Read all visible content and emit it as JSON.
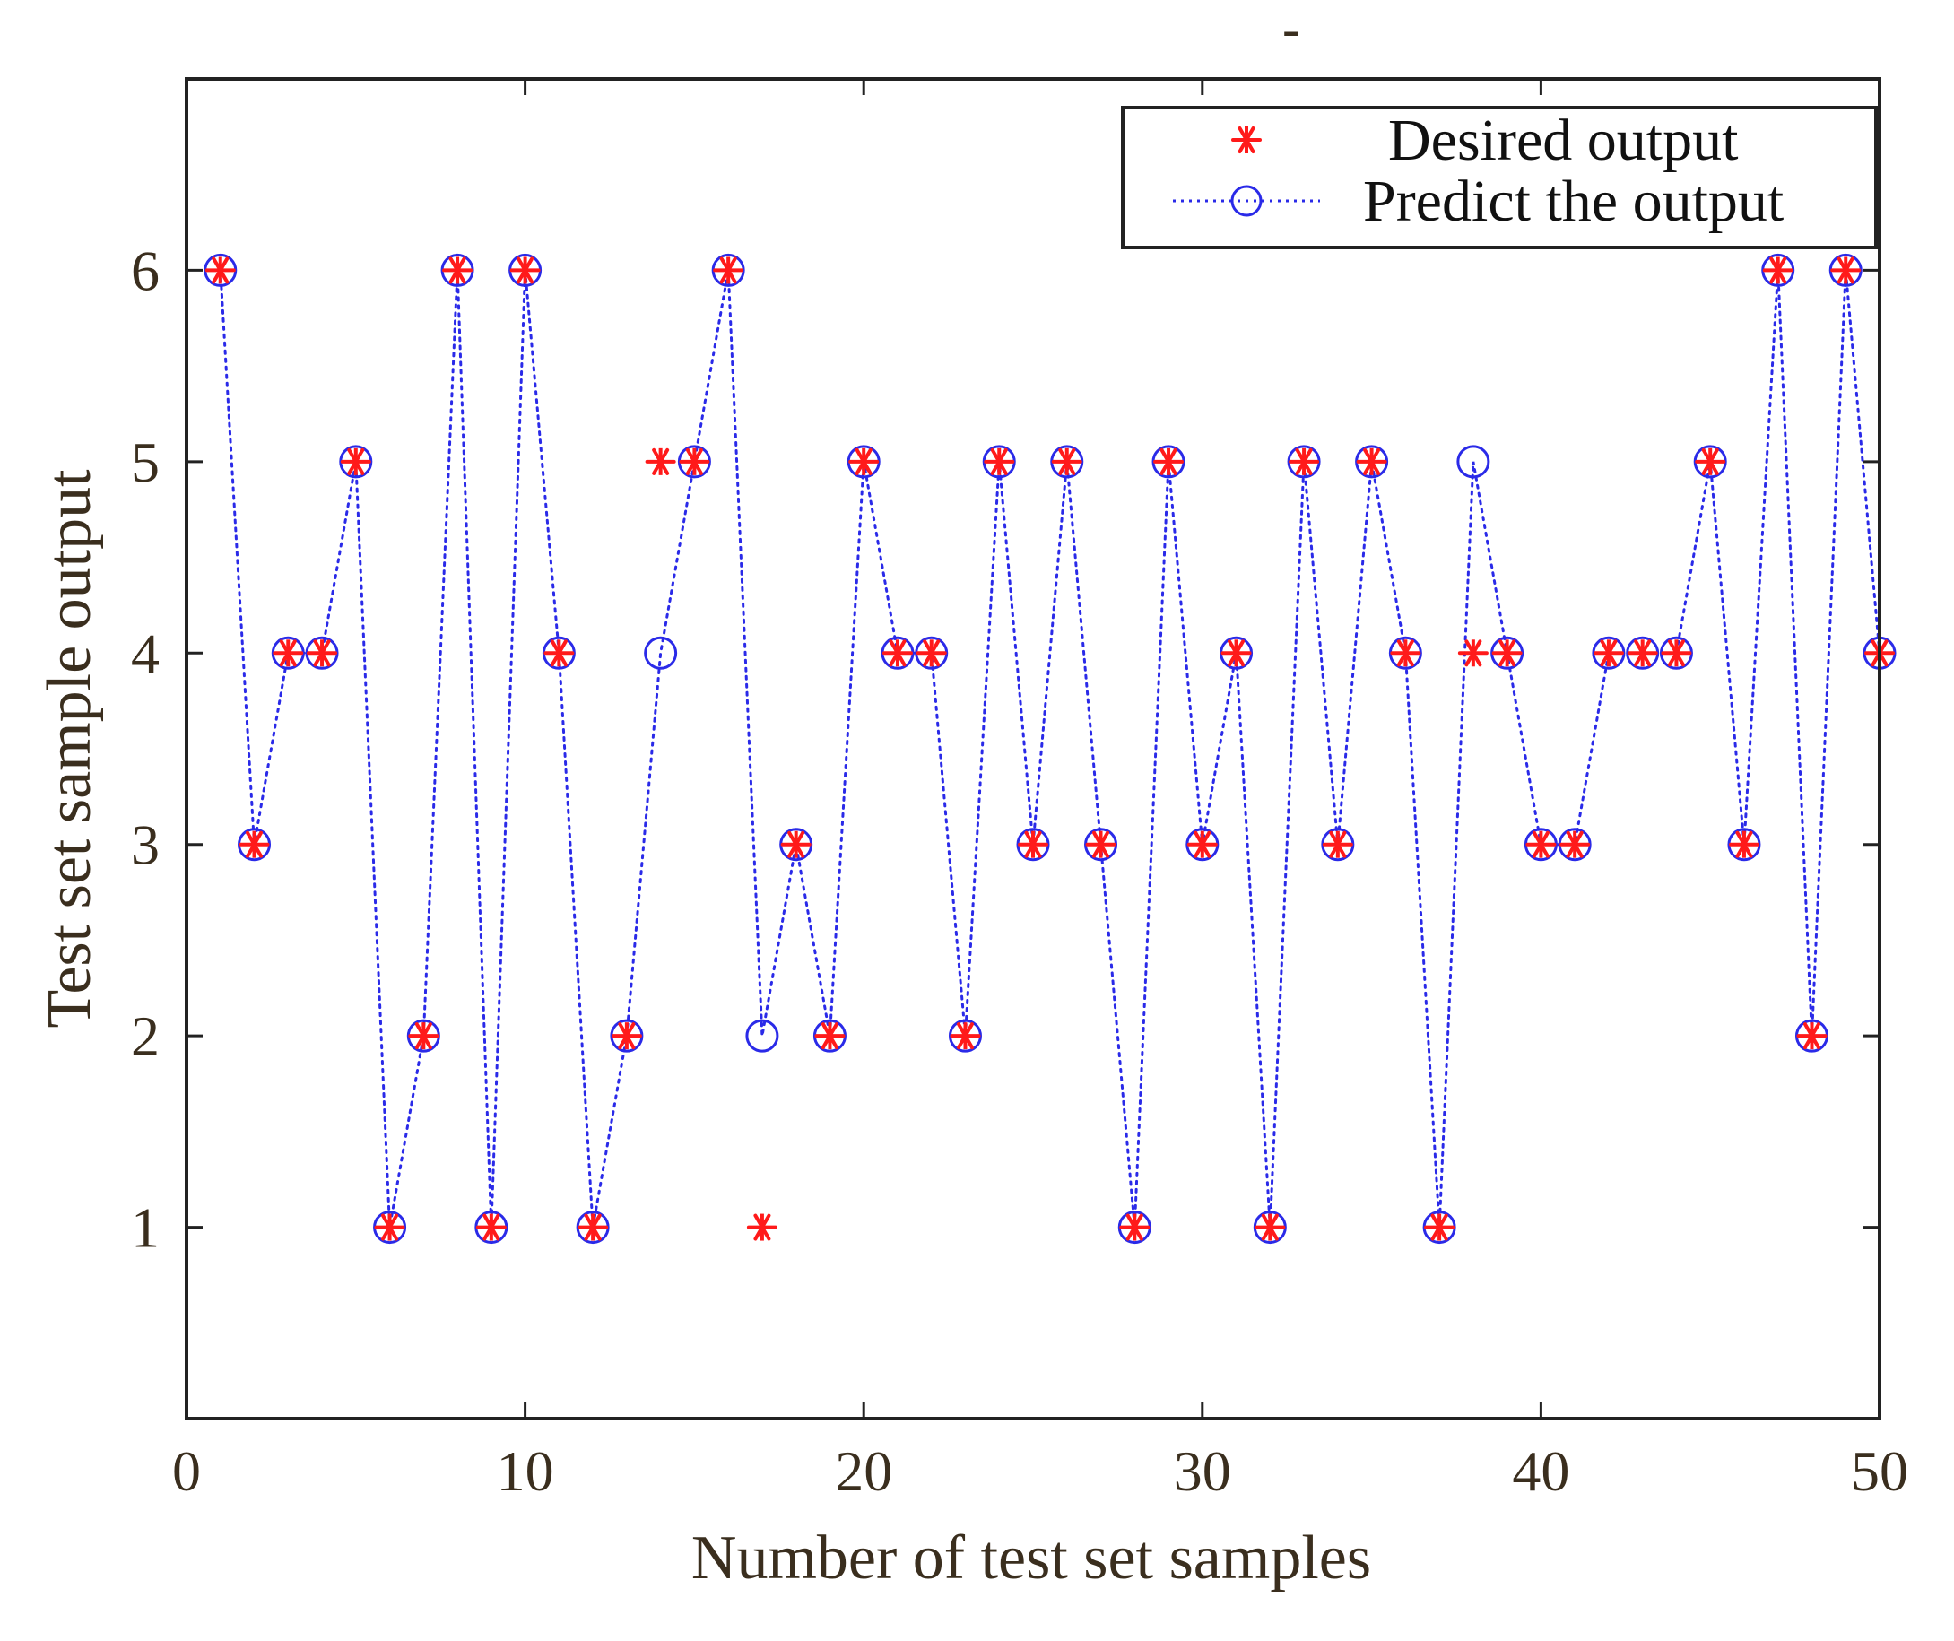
{
  "chart_data": {
    "type": "scatter",
    "title": "-",
    "xlabel": "Number of test set samples",
    "ylabel": "Test set sample output",
    "xlim": [
      0,
      50
    ],
    "ylim": [
      0,
      7
    ],
    "x_ticks": [
      0,
      10,
      20,
      30,
      40,
      50
    ],
    "y_ticks": [
      1,
      2,
      3,
      4,
      5,
      6
    ],
    "legend_position": "top-right",
    "series": [
      {
        "name": "Desired output",
        "marker": "asterisk",
        "color": "#ff1a1a",
        "x": [
          1,
          2,
          3,
          4,
          5,
          6,
          7,
          8,
          9,
          10,
          11,
          12,
          13,
          14,
          15,
          16,
          17,
          18,
          19,
          20,
          21,
          22,
          23,
          24,
          25,
          26,
          27,
          28,
          29,
          30,
          31,
          32,
          33,
          34,
          35,
          36,
          37,
          38,
          39,
          40,
          41,
          42,
          43,
          44,
          45,
          46,
          47,
          48,
          49,
          50
        ],
        "values": [
          6,
          3,
          4,
          4,
          5,
          1,
          2,
          6,
          1,
          6,
          4,
          1,
          2,
          5,
          5,
          6,
          1,
          3,
          2,
          5,
          4,
          4,
          2,
          5,
          3,
          5,
          3,
          1,
          5,
          3,
          4,
          1,
          5,
          3,
          5,
          4,
          1,
          4,
          4,
          3,
          3,
          4,
          4,
          4,
          5,
          3,
          6,
          2,
          6,
          4
        ]
      },
      {
        "name": "Predict the output",
        "marker": "circle",
        "line": "dotted",
        "color": "#2a2ae8",
        "x": [
          1,
          2,
          3,
          4,
          5,
          6,
          7,
          8,
          9,
          10,
          11,
          12,
          13,
          14,
          15,
          16,
          17,
          18,
          19,
          20,
          21,
          22,
          23,
          24,
          25,
          26,
          27,
          28,
          29,
          30,
          31,
          32,
          33,
          34,
          35,
          36,
          37,
          38,
          39,
          40,
          41,
          42,
          43,
          44,
          45,
          46,
          47,
          48,
          49,
          50
        ],
        "values": [
          6,
          3,
          4,
          4,
          5,
          1,
          2,
          6,
          1,
          6,
          4,
          1,
          2,
          4,
          5,
          6,
          2,
          3,
          2,
          5,
          4,
          4,
          2,
          5,
          3,
          5,
          3,
          1,
          5,
          3,
          4,
          1,
          5,
          3,
          5,
          4,
          1,
          5,
          4,
          3,
          3,
          4,
          4,
          4,
          5,
          3,
          6,
          2,
          6,
          4
        ]
      }
    ]
  }
}
